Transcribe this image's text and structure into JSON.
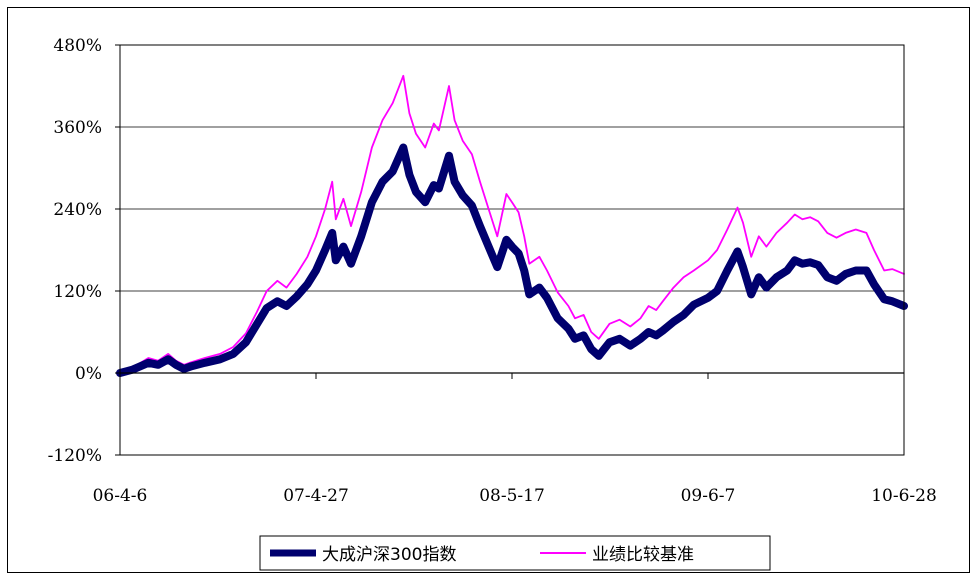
{
  "chart_data": {
    "type": "line",
    "title": "",
    "xlabel": "",
    "ylabel": "",
    "ylim": [
      -120,
      480
    ],
    "yticks": [
      -120,
      0,
      120,
      240,
      360,
      480
    ],
    "ytick_labels": [
      "-120%",
      "0%",
      "120%",
      "240%",
      "360%",
      "480%"
    ],
    "xticks": [
      "06-4-6",
      "07-4-27",
      "08-5-17",
      "09-6-7",
      "10-6-28"
    ],
    "grid": "horizontal",
    "legend_position": "bottom",
    "series": [
      {
        "name": "大成沪深300指数",
        "color": "#00006e",
        "points": [
          [
            "06-4-6",
            0
          ],
          [
            "06-5-1",
            5
          ],
          [
            "06-6-1",
            15
          ],
          [
            "06-6-20",
            12
          ],
          [
            "06-7-10",
            20
          ],
          [
            "06-7-25",
            12
          ],
          [
            "06-8-10",
            6
          ],
          [
            "06-8-25",
            10
          ],
          [
            "06-9-20",
            15
          ],
          [
            "06-10-20",
            20
          ],
          [
            "06-11-15",
            28
          ],
          [
            "06-12-10",
            45
          ],
          [
            "07-1-1",
            72
          ],
          [
            "07-1-20",
            95
          ],
          [
            "07-2-10",
            105
          ],
          [
            "07-2-28",
            98
          ],
          [
            "07-3-20",
            112
          ],
          [
            "07-4-10",
            130
          ],
          [
            "07-4-27",
            150
          ],
          [
            "07-5-15",
            180
          ],
          [
            "07-5-29",
            205
          ],
          [
            "07-6-5",
            165
          ],
          [
            "07-6-20",
            185
          ],
          [
            "07-7-5",
            160
          ],
          [
            "07-7-25",
            200
          ],
          [
            "07-8-15",
            250
          ],
          [
            "07-9-5",
            280
          ],
          [
            "07-9-25",
            295
          ],
          [
            "07-10-16",
            330
          ],
          [
            "07-10-28",
            290
          ],
          [
            "07-11-10",
            265
          ],
          [
            "07-11-28",
            250
          ],
          [
            "07-12-15",
            275
          ],
          [
            "07-12-25",
            270
          ],
          [
            "08-1-14",
            318
          ],
          [
            "08-1-25",
            280
          ],
          [
            "08-2-10",
            260
          ],
          [
            "08-2-28",
            245
          ],
          [
            "08-3-15",
            215
          ],
          [
            "08-4-1",
            185
          ],
          [
            "08-4-18",
            155
          ],
          [
            "08-5-6",
            195
          ],
          [
            "08-5-17",
            185
          ],
          [
            "08-5-30",
            175
          ],
          [
            "08-6-10",
            150
          ],
          [
            "08-6-20",
            115
          ],
          [
            "08-7-10",
            125
          ],
          [
            "08-7-25",
            110
          ],
          [
            "08-8-15",
            80
          ],
          [
            "08-9-5",
            65
          ],
          [
            "08-9-18",
            50
          ],
          [
            "08-10-5",
            55
          ],
          [
            "08-10-20",
            35
          ],
          [
            "08-11-4",
            25
          ],
          [
            "08-11-25",
            45
          ],
          [
            "08-12-15",
            50
          ],
          [
            "09-1-5",
            40
          ],
          [
            "09-1-25",
            50
          ],
          [
            "09-2-10",
            60
          ],
          [
            "09-2-25",
            55
          ],
          [
            "09-3-10",
            62
          ],
          [
            "09-3-31",
            75
          ],
          [
            "09-4-20",
            85
          ],
          [
            "09-5-10",
            100
          ],
          [
            "09-6-7",
            110
          ],
          [
            "09-6-25",
            120
          ],
          [
            "09-7-15",
            150
          ],
          [
            "09-8-4",
            178
          ],
          [
            "09-8-15",
            155
          ],
          [
            "09-8-31",
            115
          ],
          [
            "09-9-15",
            140
          ],
          [
            "09-9-30",
            125
          ],
          [
            "09-10-20",
            140
          ],
          [
            "09-11-10",
            150
          ],
          [
            "09-11-25",
            165
          ],
          [
            "09-12-10",
            160
          ],
          [
            "09-12-25",
            162
          ],
          [
            "10-1-10",
            158
          ],
          [
            "10-1-28",
            140
          ],
          [
            "10-2-15",
            135
          ],
          [
            "10-3-5",
            145
          ],
          [
            "10-3-25",
            150
          ],
          [
            "10-4-15",
            150
          ],
          [
            "10-4-30",
            130
          ],
          [
            "10-5-20",
            108
          ],
          [
            "10-6-5",
            105
          ],
          [
            "10-6-28",
            98
          ]
        ]
      },
      {
        "name": "业绩比较基准",
        "color": "#ff00ff",
        "points": [
          [
            "06-4-6",
            0
          ],
          [
            "06-5-1",
            8
          ],
          [
            "06-6-1",
            22
          ],
          [
            "06-6-20",
            18
          ],
          [
            "06-7-10",
            28
          ],
          [
            "06-7-25",
            18
          ],
          [
            "06-8-10",
            12
          ],
          [
            "06-8-25",
            16
          ],
          [
            "06-9-20",
            22
          ],
          [
            "06-10-20",
            28
          ],
          [
            "06-11-15",
            38
          ],
          [
            "06-12-10",
            58
          ],
          [
            "07-1-1",
            90
          ],
          [
            "07-1-20",
            120
          ],
          [
            "07-2-10",
            135
          ],
          [
            "07-2-28",
            125
          ],
          [
            "07-3-20",
            145
          ],
          [
            "07-4-10",
            170
          ],
          [
            "07-4-27",
            200
          ],
          [
            "07-5-15",
            240
          ],
          [
            "07-5-29",
            280
          ],
          [
            "07-6-5",
            225
          ],
          [
            "07-6-20",
            255
          ],
          [
            "07-7-5",
            215
          ],
          [
            "07-7-25",
            265
          ],
          [
            "07-8-15",
            330
          ],
          [
            "07-9-5",
            370
          ],
          [
            "07-9-25",
            395
          ],
          [
            "07-10-16",
            435
          ],
          [
            "07-10-28",
            380
          ],
          [
            "07-11-10",
            350
          ],
          [
            "07-11-28",
            330
          ],
          [
            "07-12-15",
            365
          ],
          [
            "07-12-25",
            355
          ],
          [
            "08-1-14",
            420
          ],
          [
            "08-1-25",
            370
          ],
          [
            "08-2-10",
            340
          ],
          [
            "08-2-28",
            320
          ],
          [
            "08-3-15",
            280
          ],
          [
            "08-4-1",
            240
          ],
          [
            "08-4-18",
            200
          ],
          [
            "08-5-6",
            262
          ],
          [
            "08-5-17",
            250
          ],
          [
            "08-5-30",
            235
          ],
          [
            "08-6-10",
            200
          ],
          [
            "08-6-20",
            160
          ],
          [
            "08-7-10",
            170
          ],
          [
            "08-7-25",
            150
          ],
          [
            "08-8-15",
            118
          ],
          [
            "08-9-5",
            98
          ],
          [
            "08-9-18",
            80
          ],
          [
            "08-10-5",
            85
          ],
          [
            "08-10-20",
            60
          ],
          [
            "08-11-4",
            50
          ],
          [
            "08-11-25",
            72
          ],
          [
            "08-12-15",
            78
          ],
          [
            "09-1-5",
            68
          ],
          [
            "09-1-25",
            80
          ],
          [
            "09-2-10",
            98
          ],
          [
            "09-2-25",
            92
          ],
          [
            "09-3-10",
            105
          ],
          [
            "09-3-31",
            125
          ],
          [
            "09-4-20",
            140
          ],
          [
            "09-5-10",
            150
          ],
          [
            "09-6-7",
            165
          ],
          [
            "09-6-25",
            180
          ],
          [
            "09-7-15",
            210
          ],
          [
            "09-8-4",
            242
          ],
          [
            "09-8-15",
            220
          ],
          [
            "09-8-31",
            170
          ],
          [
            "09-9-15",
            200
          ],
          [
            "09-9-30",
            185
          ],
          [
            "09-10-20",
            205
          ],
          [
            "09-11-10",
            220
          ],
          [
            "09-11-25",
            232
          ],
          [
            "09-12-10",
            225
          ],
          [
            "09-12-25",
            228
          ],
          [
            "10-1-10",
            222
          ],
          [
            "10-1-28",
            205
          ],
          [
            "10-2-15",
            198
          ],
          [
            "10-3-5",
            205
          ],
          [
            "10-3-25",
            210
          ],
          [
            "10-4-15",
            205
          ],
          [
            "10-4-30",
            180
          ],
          [
            "10-5-20",
            150
          ],
          [
            "10-6-5",
            152
          ],
          [
            "10-6-28",
            145
          ]
        ]
      }
    ]
  }
}
